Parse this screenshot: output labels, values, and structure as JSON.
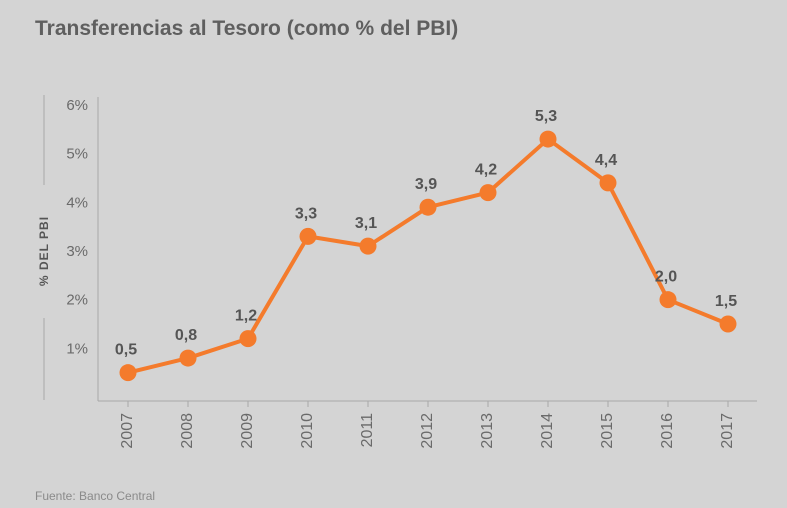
{
  "title": "Transferencias al Tesoro (como % del PBI)",
  "source": "Fuente: Banco Central",
  "colors": {
    "background": "#d4d4d4",
    "line": "#f47b2c",
    "axis": "#a8a8a8",
    "text": "#555555"
  },
  "chart_data": {
    "type": "line",
    "title": "Transferencias al Tesoro (como % del PBI)",
    "xlabel": "",
    "ylabel": "% DEL PBI",
    "categories": [
      "2007",
      "2008",
      "2009",
      "2010",
      "2011",
      "2012",
      "2013",
      "2014",
      "2015",
      "2016",
      "2017"
    ],
    "values": [
      0.5,
      0.8,
      1.2,
      3.3,
      3.1,
      3.9,
      4.2,
      5.3,
      4.4,
      2.0,
      1.5
    ],
    "data_labels": [
      "0,5",
      "0,8",
      "1,2",
      "3,3",
      "3,1",
      "3,9",
      "4,2",
      "5,3",
      "4,4",
      "2,0",
      "1,5"
    ],
    "yticks": [
      1,
      2,
      3,
      4,
      5,
      6
    ],
    "ytick_labels": [
      "1%",
      "2%",
      "3%",
      "4%",
      "5%",
      "6%"
    ],
    "ylim": [
      0,
      6
    ],
    "grid": false,
    "legend": "none"
  }
}
